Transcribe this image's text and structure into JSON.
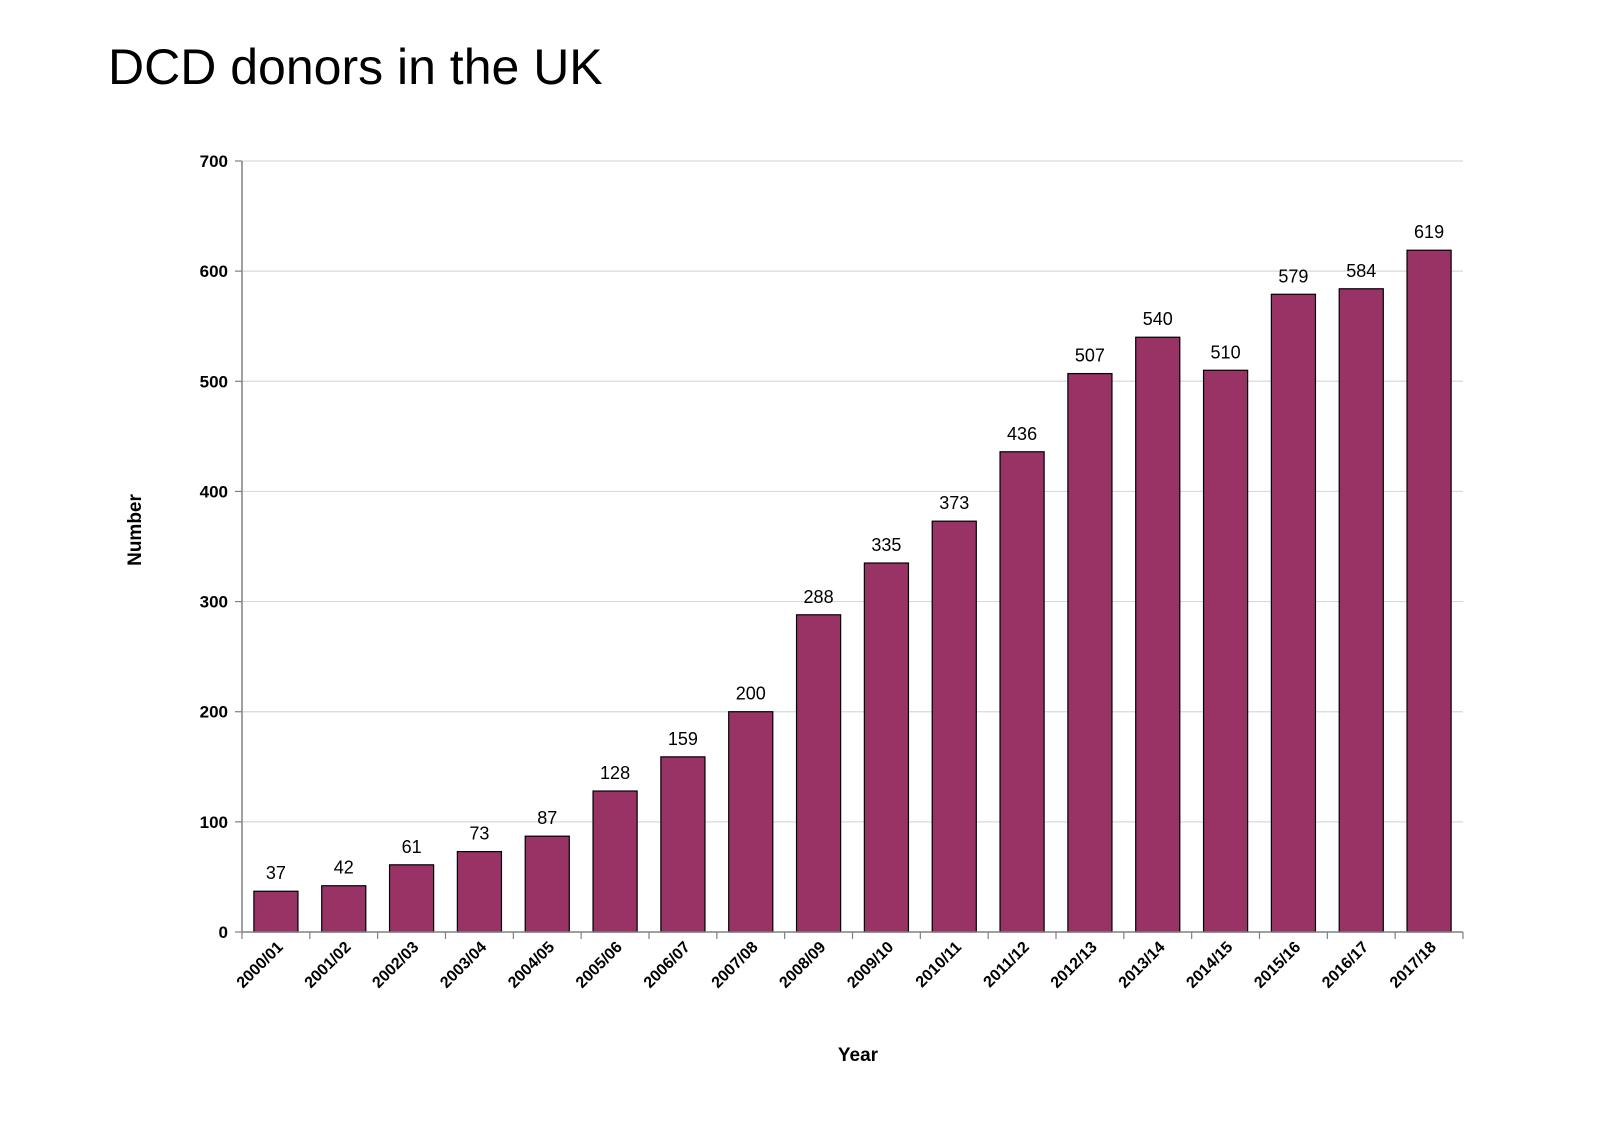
{
  "page": {
    "title": "DCD donors in the UK"
  },
  "chart_data": {
    "type": "bar",
    "title": "DCD donors in the UK",
    "xlabel": "Year",
    "ylabel": "Number",
    "categories": [
      "2000/01",
      "2001/02",
      "2002/03",
      "2003/04",
      "2004/05",
      "2005/06",
      "2006/07",
      "2007/08",
      "2008/09",
      "2009/10",
      "2010/11",
      "2011/12",
      "2012/13",
      "2013/14",
      "2014/15",
      "2015/16",
      "2016/17",
      "2017/18"
    ],
    "values": [
      37,
      42,
      61,
      73,
      87,
      128,
      159,
      200,
      288,
      335,
      373,
      436,
      507,
      540,
      510,
      579,
      584,
      619
    ],
    "ylim": [
      0,
      700
    ],
    "yticks": [
      0,
      100,
      200,
      300,
      400,
      500,
      600,
      700
    ],
    "grid": true,
    "legend": "none",
    "data_labels": true,
    "bar_color": "#993366"
  }
}
